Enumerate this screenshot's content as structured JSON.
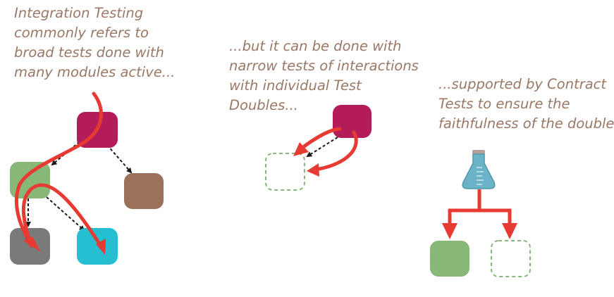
{
  "captions": {
    "left": [
      "Integration Testing",
      "commonly refers to",
      "broad tests done with",
      "many modules active..."
    ],
    "middle": [
      "...but it can be done with",
      "narrow tests of interactions",
      "with individual Test",
      "Doubles..."
    ],
    "right": [
      "...supported by Contract",
      "Tests to ensure the",
      "faithfulness of the double"
    ]
  },
  "nodes": {
    "left_top_module": "crimson module",
    "left_green_module": "green module",
    "left_brown_module": "brown module",
    "left_gray_module": "gray module",
    "left_cyan_module": "cyan module",
    "middle_module": "crimson module",
    "middle_test_double": "test double",
    "right_contract_flask": "contract test flask",
    "right_green_module": "green module",
    "right_test_double": "test double"
  },
  "colors": {
    "crimson": "#b31c58",
    "green": "#88b878",
    "brown": "#9a725a",
    "gray": "#7a7a7a",
    "cyan": "#25bfd1",
    "red": "#e63a32",
    "double_dash": "#86b87a",
    "flask": "#6bb3c6",
    "caption": "#9a7866"
  }
}
